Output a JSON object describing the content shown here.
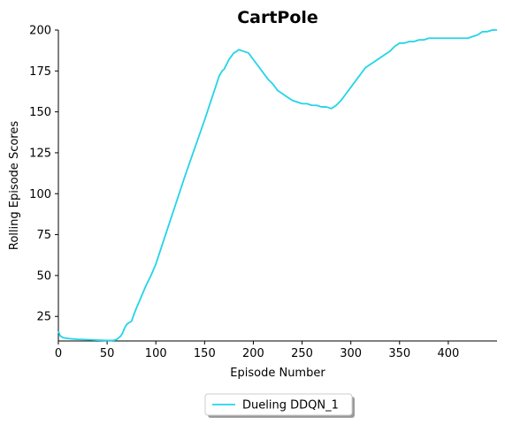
{
  "chart_data": {
    "type": "line",
    "title": "CartPole",
    "xlabel": "Episode Number",
    "ylabel": "Rolling Episode Scores",
    "xlim": [
      0,
      450
    ],
    "ylim": [
      10,
      200
    ],
    "xticks": [
      "0",
      "50",
      "100",
      "150",
      "200",
      "250",
      "300",
      "350",
      "400"
    ],
    "xtick_values": [
      0,
      50,
      100,
      150,
      200,
      250,
      300,
      350,
      400
    ],
    "yticks": [
      "25",
      "50",
      "75",
      "100",
      "125",
      "150",
      "175",
      "200"
    ],
    "ytick_values": [
      25,
      50,
      75,
      100,
      125,
      150,
      175,
      200
    ],
    "grid": false,
    "legend_position": "bottom-center",
    "series": [
      {
        "name": "Dueling DDQN_1",
        "color": "#22d4e8",
        "x": [
          0,
          2,
          5,
          10,
          20,
          30,
          40,
          50,
          55,
          58,
          60,
          62,
          64,
          66,
          68,
          70,
          72,
          75,
          78,
          80,
          85,
          90,
          95,
          100,
          110,
          120,
          130,
          140,
          150,
          160,
          165,
          168,
          170,
          175,
          180,
          183,
          185,
          190,
          195,
          200,
          205,
          210,
          215,
          220,
          225,
          230,
          235,
          240,
          245,
          250,
          255,
          260,
          265,
          270,
          275,
          280,
          285,
          290,
          295,
          300,
          305,
          310,
          315,
          320,
          325,
          330,
          335,
          340,
          345,
          350,
          355,
          360,
          365,
          370,
          375,
          380,
          385,
          390,
          400,
          410,
          415,
          420,
          425,
          430,
          435,
          440,
          445,
          450
        ],
        "y": [
          16,
          13,
          12,
          11.5,
          11,
          10.8,
          10.5,
          10.3,
          10.3,
          10.5,
          11,
          12,
          13,
          15,
          18,
          20,
          21,
          22,
          27,
          30,
          37,
          44,
          50,
          57,
          75,
          93,
          111,
          128,
          145,
          163,
          172,
          175,
          176,
          182,
          186,
          187,
          188,
          187,
          186,
          182,
          178,
          174,
          170,
          167,
          163,
          161,
          159,
          157,
          156,
          155,
          155,
          154,
          154,
          153,
          153,
          152,
          154,
          157,
          161,
          165,
          169,
          173,
          177,
          179,
          181,
          183,
          185,
          187,
          190,
          192,
          192,
          193,
          193,
          194,
          194,
          195,
          195,
          195,
          195,
          195,
          195,
          195,
          196,
          197,
          199,
          199,
          200,
          200
        ]
      }
    ]
  }
}
